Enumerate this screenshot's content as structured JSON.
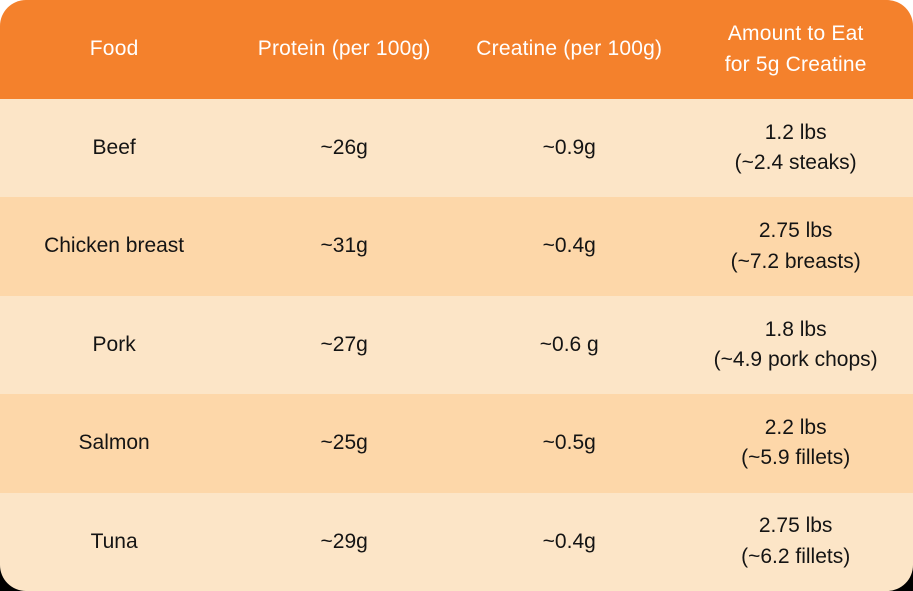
{
  "colors": {
    "header_bg": "#F4812C",
    "row_light": "#FCE5C7",
    "row_dark": "#FDD7A9",
    "header_text": "#FFFFFF",
    "body_text": "#141414"
  },
  "table": {
    "columns": [
      "Food",
      "Protein (per 100g)",
      "Creatine (per 100g)"
    ],
    "amount_header_lines": [
      "Amount to Eat",
      "for 5g Creatine"
    ],
    "rows": [
      {
        "food": "Beef",
        "protein": "~26g",
        "creatine": "~0.9g",
        "amount_line1": "1.2 lbs",
        "amount_line2": "(~2.4 steaks)"
      },
      {
        "food": "Chicken breast",
        "protein": "~31g",
        "creatine": "~0.4g",
        "amount_line1": "2.75 lbs",
        "amount_line2": "(~7.2 breasts)"
      },
      {
        "food": "Pork",
        "protein": "~27g",
        "creatine": "~0.6 g",
        "amount_line1": "1.8 lbs",
        "amount_line2": "(~4.9 pork chops)"
      },
      {
        "food": "Salmon",
        "protein": "~25g",
        "creatine": "~0.5g",
        "amount_line1": "2.2 lbs",
        "amount_line2": "(~5.9 fillets)"
      },
      {
        "food": "Tuna",
        "protein": "~29g",
        "creatine": "~0.4g",
        "amount_line1": "2.75 lbs",
        "amount_line2": "(~6.2 fillets)"
      }
    ]
  },
  "chart_data": {
    "type": "table",
    "columns": [
      "Food",
      "Protein (per 100g)",
      "Creatine (per 100g)",
      "Amount to Eat for 5g Creatine"
    ],
    "rows": [
      [
        "Beef",
        "~26g",
        "~0.9g",
        "1.2 lbs (~2.4 steaks)"
      ],
      [
        "Chicken breast",
        "~31g",
        "~0.4g",
        "2.75 lbs (~7.2 breasts)"
      ],
      [
        "Pork",
        "~27g",
        "~0.6 g",
        "1.8 lbs (~4.9 pork chops)"
      ],
      [
        "Salmon",
        "~25g",
        "~0.5g",
        "2.2 lbs (~5.9 fillets)"
      ],
      [
        "Tuna",
        "~29g",
        "~0.4g",
        "2.75 lbs (~6.2 fillets)"
      ]
    ]
  }
}
